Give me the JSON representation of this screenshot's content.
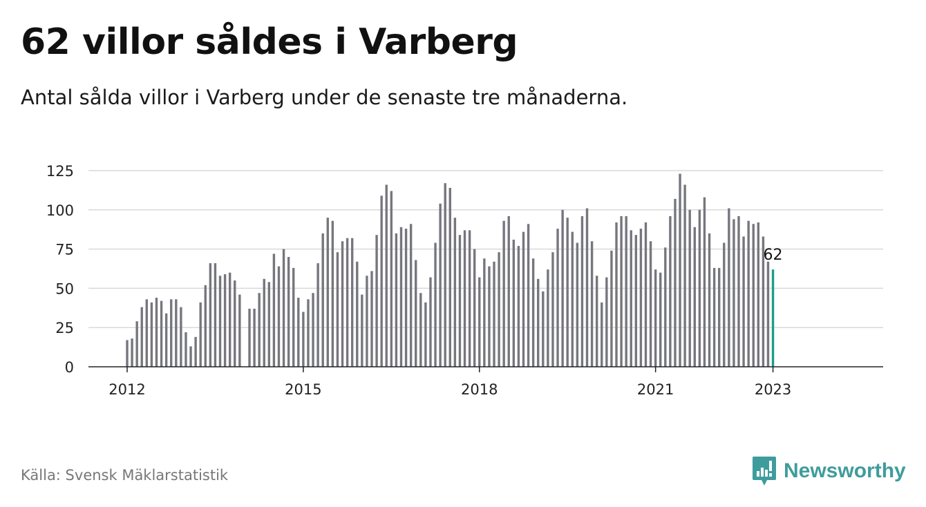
{
  "header": {
    "title": "62 villor såldes i Varberg",
    "subtitle": "Antal sålda villor i Varberg under de senaste tre månaderna."
  },
  "footer": {
    "source": "Källa: Svensk Mäklarstatistik",
    "brand": "Newsworthy"
  },
  "colors": {
    "bar": "#76767e",
    "highlight": "#1b9e8c",
    "grid": "#d9d9d9",
    "brand": "#3f9c9c"
  },
  "chart_data": {
    "type": "bar",
    "x_start": "2012-01",
    "x_end": "2023-01",
    "x_ticks": [
      "2012",
      "2015",
      "2018",
      "2021",
      "2023"
    ],
    "y_ticks": [
      0,
      25,
      50,
      75,
      100,
      125
    ],
    "ylim": [
      0,
      125
    ],
    "grid": true,
    "highlight_label": "62",
    "values": [
      17,
      18,
      29,
      38,
      43,
      41,
      44,
      42,
      34,
      43,
      43,
      38,
      22,
      13,
      19,
      41,
      52,
      66,
      66,
      58,
      59,
      60,
      55,
      46,
      null,
      37,
      37,
      47,
      56,
      54,
      72,
      64,
      75,
      70,
      63,
      44,
      35,
      43,
      47,
      66,
      85,
      95,
      93,
      73,
      80,
      82,
      82,
      67,
      46,
      58,
      61,
      84,
      109,
      116,
      112,
      85,
      89,
      88,
      91,
      68,
      47,
      41,
      57,
      79,
      104,
      117,
      114,
      95,
      84,
      87,
      87,
      75,
      57,
      69,
      64,
      67,
      73,
      93,
      96,
      81,
      77,
      86,
      91,
      69,
      56,
      48,
      62,
      73,
      88,
      100,
      95,
      86,
      79,
      96,
      101,
      80,
      58,
      41,
      57,
      74,
      92,
      96,
      96,
      87,
      84,
      88,
      92,
      80,
      62,
      60,
      76,
      96,
      107,
      123,
      116,
      100,
      89,
      100,
      108,
      85,
      63,
      63,
      79,
      101,
      94,
      96,
      83,
      93,
      91,
      92,
      83,
      67,
      62
    ]
  }
}
